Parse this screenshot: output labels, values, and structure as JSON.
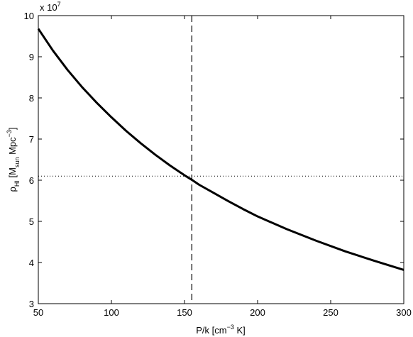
{
  "chart_data": {
    "type": "line",
    "xlabel": {
      "main": "P/k [cm",
      "sup": "−3",
      "tail": " K]"
    },
    "ylabel": {
      "rho": "ρ",
      "sub1": "HI",
      "pre": " [M",
      "sub2": "sun",
      "mid": " Mpc",
      "sup": "−3",
      "tail": "]"
    },
    "y_multiplier": {
      "base": "x 10",
      "exp": "7"
    },
    "xlim": [
      50,
      300
    ],
    "ylim": [
      3,
      10
    ],
    "xticks": [
      50,
      100,
      150,
      200,
      250,
      300
    ],
    "yticks": [
      3,
      4,
      5,
      6,
      7,
      8,
      9,
      10
    ],
    "grid": false,
    "series": [
      {
        "style": "solid",
        "x": [
          50,
          60,
          70,
          80,
          90,
          100,
          110,
          120,
          130,
          140,
          150,
          155,
          160,
          170,
          180,
          190,
          200,
          220,
          240,
          260,
          280,
          300
        ],
        "y": [
          9.68,
          9.15,
          8.68,
          8.26,
          7.88,
          7.53,
          7.2,
          6.9,
          6.62,
          6.36,
          6.12,
          6.01,
          5.89,
          5.69,
          5.49,
          5.3,
          5.12,
          4.81,
          4.53,
          4.27,
          4.04,
          3.82
        ]
      }
    ],
    "reference_lines": [
      {
        "orientation": "vertical",
        "x": 155,
        "style": "dashed"
      },
      {
        "orientation": "horizontal",
        "y": 6.1,
        "style": "dotted"
      }
    ]
  }
}
